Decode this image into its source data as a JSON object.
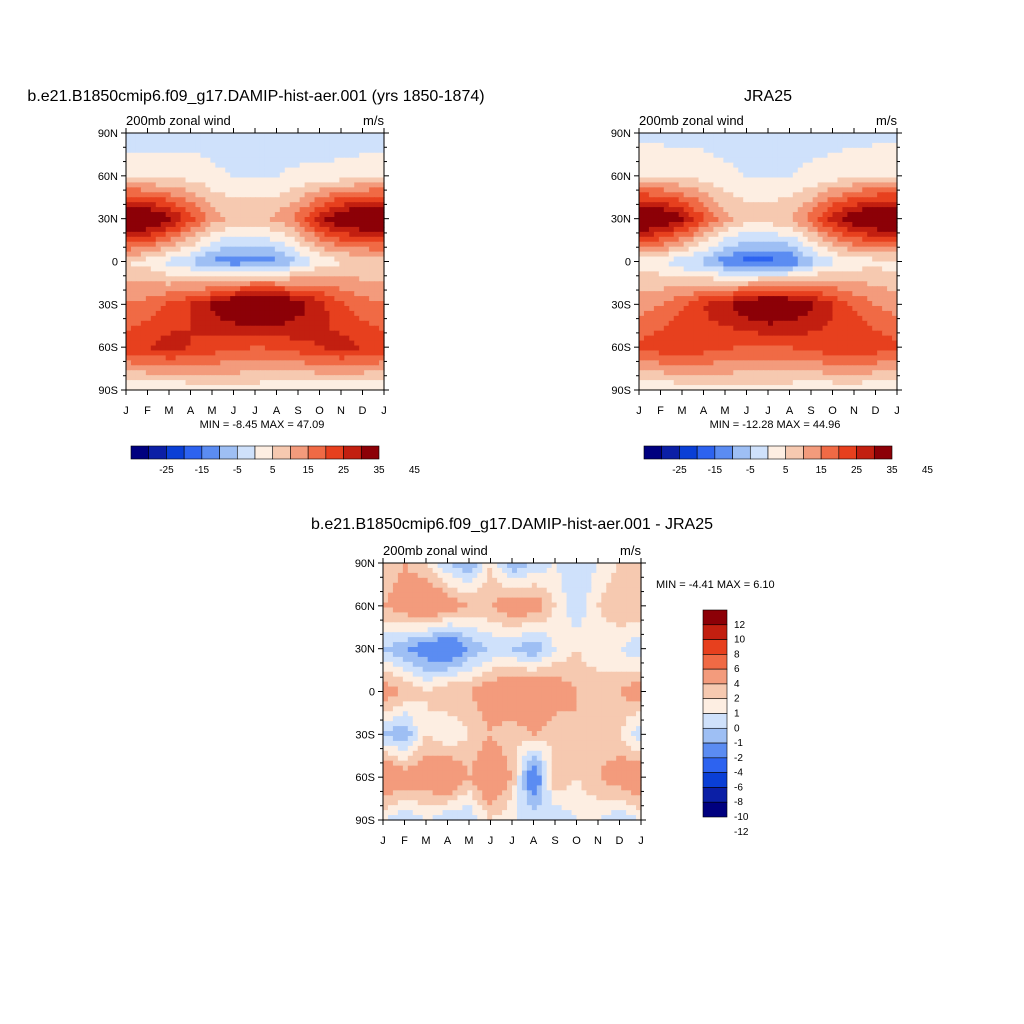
{
  "colormaps": {
    "absolute": [
      "#00007f",
      "#0b1fa6",
      "#0a3fd6",
      "#2d63f0",
      "#5b8cf2",
      "#9ebff4",
      "#cfe1fb",
      "#fdeee2",
      "#f6c9b0",
      "#f39b7c",
      "#f06a45",
      "#e7401e",
      "#c21f10",
      "#8c0007"
    ],
    "difference": [
      "#00007f",
      "#0b1fa6",
      "#0a3fd6",
      "#2d63f0",
      "#5b8cf2",
      "#9ebff4",
      "#cfe1fb",
      "#fdeee2",
      "#f6c9b0",
      "#f39b7c",
      "#f06a45",
      "#e7401e",
      "#c21f10",
      "#8c0007"
    ]
  },
  "panels": [
    {
      "title": "b.e21.B1850cmip6.f09_g17.DAMIP-hist-aer.001 (yrs 1850-1874)",
      "subtitle_left": "200mb zonal wind",
      "subtitle_right": "m/s",
      "minmax": "MIN =  -8.45 MAX =  47.09",
      "x_ticks": [
        "J",
        "F",
        "M",
        "A",
        "M",
        "J",
        "J",
        "A",
        "S",
        "O",
        "N",
        "D",
        "J"
      ],
      "y_ticks": [
        "90N",
        "60N",
        "30N",
        "0",
        "30S",
        "60S",
        "90S"
      ],
      "colorbar_labels": [
        "-25",
        "-15",
        "-5",
        "5",
        "15",
        "25",
        "35",
        "45"
      ]
    },
    {
      "title": "JRA25",
      "subtitle_left": "200mb zonal wind",
      "subtitle_right": "m/s",
      "minmax": "MIN = -12.28 MAX =  44.96",
      "x_ticks": [
        "J",
        "F",
        "M",
        "A",
        "M",
        "J",
        "J",
        "A",
        "S",
        "O",
        "N",
        "D",
        "J"
      ],
      "y_ticks": [
        "90N",
        "60N",
        "30N",
        "0",
        "30S",
        "60S",
        "90S"
      ],
      "colorbar_labels": [
        "-25",
        "-15",
        "-5",
        "5",
        "15",
        "25",
        "35",
        "45"
      ]
    },
    {
      "title": "b.e21.B1850cmip6.f09_g17.DAMIP-hist-aer.001 - JRA25",
      "subtitle_left": "200mb zonal wind",
      "subtitle_right": "m/s",
      "minmax": "MIN =  -4.41 MAX =   6.10",
      "x_ticks": [
        "J",
        "F",
        "M",
        "A",
        "M",
        "J",
        "J",
        "A",
        "S",
        "O",
        "N",
        "D",
        "J"
      ],
      "y_ticks": [
        "90N",
        "60N",
        "30N",
        "0",
        "30S",
        "60S",
        "90S"
      ],
      "colorbar_labels": [
        "12",
        "10",
        "8",
        "6",
        "4",
        "2",
        "1",
        "0",
        "-1",
        "-2",
        "-4",
        "-6",
        "-8",
        "-10",
        "-12"
      ]
    }
  ],
  "chart_data": [
    {
      "type": "heatmap",
      "title": "b.e21.B1850cmip6.f09_g17.DAMIP-hist-aer.001 (yrs 1850-1874)",
      "x": [
        "J",
        "F",
        "M",
        "A",
        "M",
        "J",
        "J",
        "A",
        "S",
        "O",
        "N",
        "D",
        "J"
      ],
      "y": [
        90,
        60,
        30,
        0,
        -30,
        -60,
        -90
      ],
      "values": [
        [
          2,
          2,
          2,
          3,
          3,
          2,
          3,
          3,
          2,
          2,
          2,
          2,
          2
        ],
        [
          8,
          8,
          8,
          8,
          6,
          5,
          5,
          5,
          6,
          6,
          7,
          8,
          8
        ],
        [
          46,
          44,
          37,
          27,
          18,
          14,
          14,
          16,
          22,
          33,
          41,
          44,
          46
        ],
        [
          10,
          8,
          3,
          0,
          -6,
          -8,
          -8,
          -6,
          0,
          6,
          9,
          10,
          10
        ],
        [
          20,
          22,
          26,
          30,
          36,
          42,
          47,
          44,
          38,
          32,
          26,
          22,
          20
        ],
        [
          28,
          30,
          32,
          30,
          28,
          26,
          25,
          26,
          28,
          30,
          32,
          30,
          28
        ],
        [
          5,
          5,
          5,
          6,
          7,
          8,
          7,
          6,
          5,
          5,
          5,
          5,
          5
        ]
      ],
      "ylim": [
        -90,
        90
      ]
    },
    {
      "type": "heatmap",
      "title": "JRA25",
      "x": [
        "J",
        "F",
        "M",
        "A",
        "M",
        "J",
        "J",
        "A",
        "S",
        "O",
        "N",
        "D",
        "J"
      ],
      "y": [
        90,
        60,
        30,
        0,
        -30,
        -60,
        -90
      ],
      "values": [
        [
          3,
          3,
          3,
          3,
          3,
          3,
          3,
          3,
          3,
          3,
          3,
          3,
          3
        ],
        [
          10,
          10,
          9,
          8,
          6,
          5,
          5,
          5,
          6,
          7,
          9,
          10,
          10
        ],
        [
          45,
          43,
          36,
          26,
          17,
          13,
          13,
          15,
          22,
          33,
          40,
          44,
          45
        ],
        [
          8,
          6,
          1,
          -2,
          -8,
          -12,
          -12,
          -10,
          -2,
          4,
          7,
          8,
          8
        ],
        [
          18,
          20,
          24,
          30,
          34,
          40,
          44,
          42,
          36,
          30,
          24,
          20,
          18
        ],
        [
          26,
          28,
          30,
          28,
          26,
          24,
          24,
          25,
          27,
          29,
          30,
          28,
          26
        ],
        [
          6,
          6,
          6,
          7,
          8,
          8,
          8,
          7,
          6,
          6,
          6,
          6,
          6
        ]
      ],
      "ylim": [
        -90,
        90
      ]
    },
    {
      "type": "heatmap",
      "title": "b.e21.B1850cmip6.f09_g17.DAMIP-hist-aer.001 - JRA25",
      "x": [
        "J",
        "F",
        "M",
        "A",
        "M",
        "J",
        "J",
        "A",
        "S",
        "O",
        "N",
        "D",
        "J"
      ],
      "y": [
        90,
        60,
        30,
        0,
        -30,
        -60,
        -90
      ],
      "values": [
        [
          1,
          2,
          1,
          -1,
          -2,
          1,
          -2,
          -1,
          0,
          -1,
          0,
          1,
          1
        ],
        [
          2,
          3,
          4,
          3,
          2,
          2,
          3,
          3,
          1,
          -1,
          1,
          2,
          2
        ],
        [
          -1,
          -2,
          -3,
          -4,
          -2,
          -1,
          -1,
          -2,
          0,
          1,
          0,
          0,
          -1
        ],
        [
          3,
          2,
          1,
          2,
          2,
          3,
          4,
          4,
          3,
          2,
          2,
          2,
          3
        ],
        [
          -1,
          -2,
          1,
          0,
          1,
          2,
          1,
          2,
          1,
          2,
          1,
          1,
          -1
        ],
        [
          4,
          3,
          3,
          4,
          2,
          4,
          2,
          -4,
          2,
          1,
          2,
          3,
          4
        ],
        [
          0,
          -1,
          0,
          -1,
          -1,
          1,
          0,
          0,
          -1,
          0,
          0,
          -1,
          0
        ]
      ],
      "ylim": [
        -90,
        90
      ]
    }
  ]
}
